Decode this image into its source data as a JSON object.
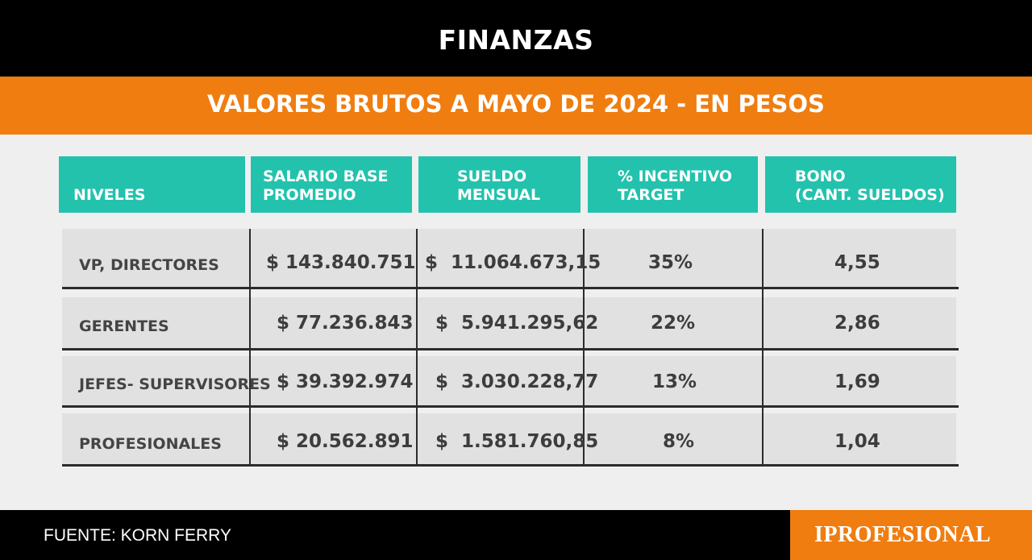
{
  "section": "FINANZAS",
  "subtitle": "VALORES BRUTOS A MAYO DE 2024 - EN PESOS",
  "table": {
    "headers": [
      [
        "NIVELES"
      ],
      [
        "SALARIO BASE",
        "PROMEDIO"
      ],
      [
        "SUELDO",
        "MENSUAL"
      ],
      [
        "% INCENTIVO",
        "TARGET"
      ],
      [
        "BONO",
        "(CANT. SUELDOS)"
      ]
    ],
    "rows": [
      {
        "nivel": "VP, DIRECTORES",
        "salario": "$ 143.840.751",
        "sueldo": "$  11.064.673,15",
        "incentivo": "35%",
        "bono": "4,55"
      },
      {
        "nivel": "GERENTES",
        "salario": "$ 77.236.843",
        "sueldo": "$  5.941.295,62",
        "incentivo": "22%",
        "bono": "2,86"
      },
      {
        "nivel": "JEFES- SUPERVISORES",
        "salario": "$ 39.392.974",
        "sueldo": "$  3.030.228,77",
        "incentivo": "13%",
        "bono": "1,69"
      },
      {
        "nivel": "PROFESIONALES",
        "salario": "$ 20.562.891",
        "sueldo": "$  1.581.760,85",
        "incentivo": "8%",
        "bono": "1,04"
      }
    ]
  },
  "source": "FUENTE: KORN FERRY",
  "logo_text": "IPROFESIONAL",
  "colors": {
    "orange": "#f07d10",
    "teal": "#23c2ad",
    "black": "#000000"
  }
}
